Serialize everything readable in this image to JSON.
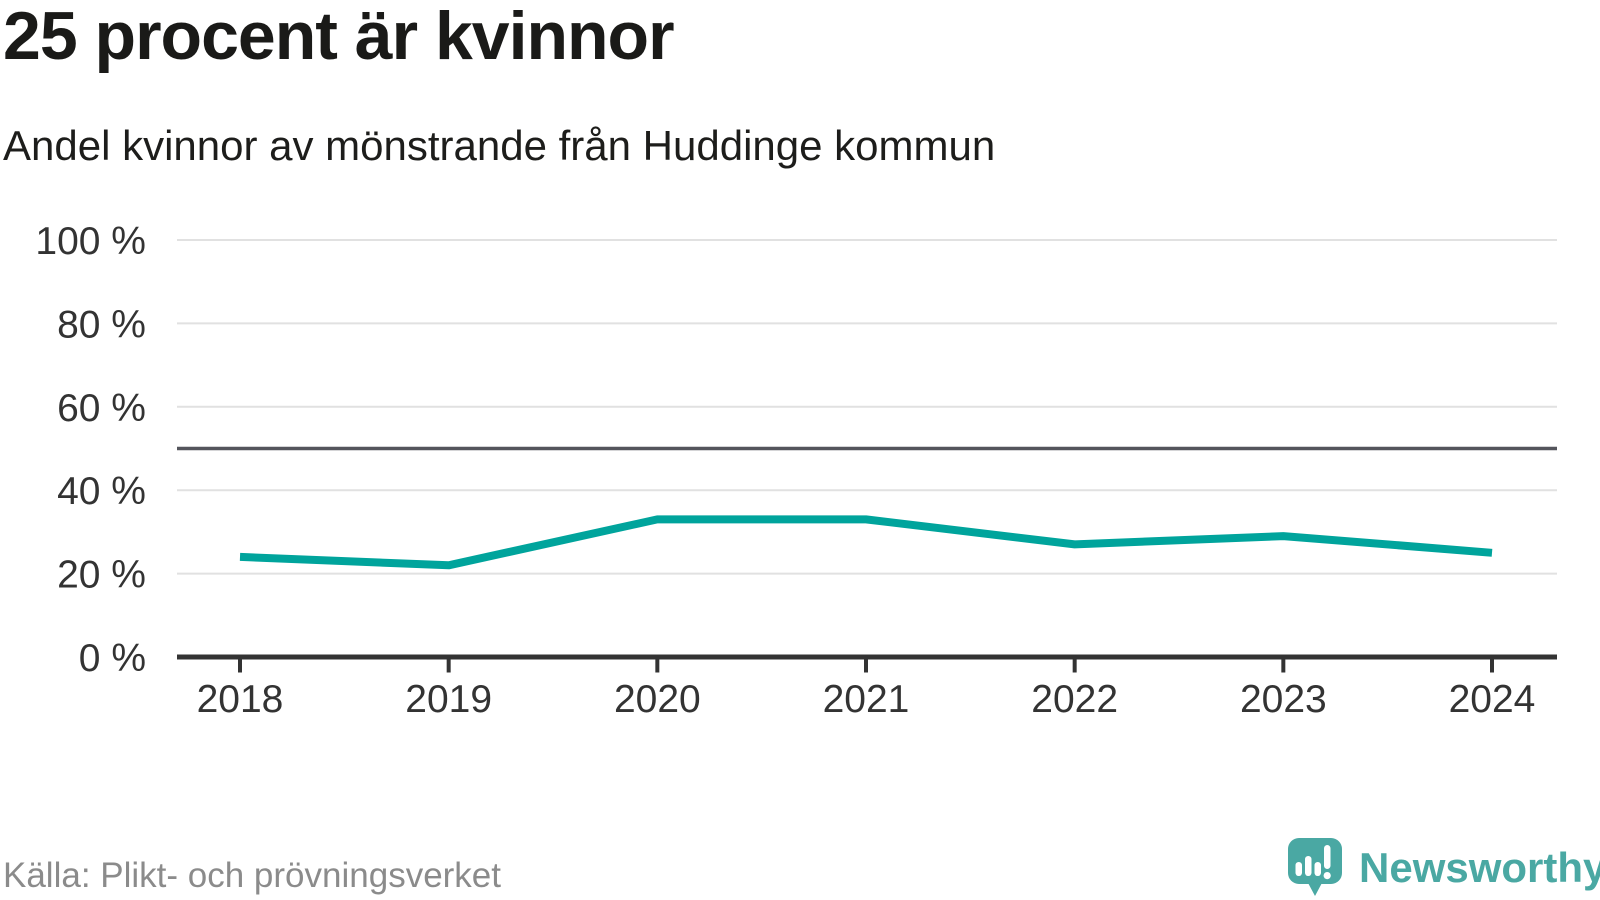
{
  "chart_data": {
    "type": "line",
    "title": "25 procent är kvinnor",
    "subtitle": "Andel kvinnor av mönstrande från Huddinge kommun",
    "source": "Källa: Plikt- och prövningsverket",
    "categories": [
      "2018",
      "2019",
      "2020",
      "2021",
      "2022",
      "2023",
      "2024"
    ],
    "series": [
      {
        "name": "Andel kvinnor av mönstrande",
        "color": "#00a49c",
        "values": [
          24,
          22,
          33,
          33,
          27,
          29,
          25
        ]
      }
    ],
    "unit": "%",
    "ylim": [
      0,
      100
    ],
    "yticks": [
      0,
      20,
      40,
      60,
      80,
      100
    ],
    "ytick_labels": [
      "0 %",
      "20 %",
      "40 %",
      "60 %",
      "80 %",
      "100 %"
    ],
    "reference_line": {
      "value": 50,
      "color": "#54555c"
    },
    "grid": true,
    "legend": "none",
    "axis_color": "#333333",
    "grid_color": "#e1e1e1",
    "label_color": "#333333"
  },
  "footer": {
    "brand": "Newsworthy",
    "brand_color": "#4aa8a3",
    "brand_icon": "newsworthy-speech-bubble-bar-chart-icon"
  }
}
